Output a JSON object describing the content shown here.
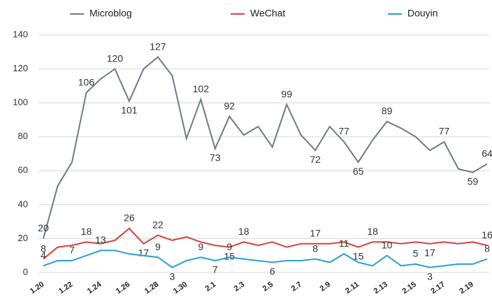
{
  "chart_data": {
    "type": "line",
    "categories": [
      "1.20",
      null,
      "1.22",
      null,
      "1.24",
      null,
      "1.26",
      null,
      "1.28",
      null,
      "1.30",
      null,
      "2.1",
      null,
      "2.3",
      null,
      "2.5",
      null,
      "2.7",
      null,
      "2.9",
      null,
      "2.11",
      null,
      "2.13",
      null,
      "2.15",
      null,
      "2.17",
      null,
      "2.19",
      null
    ],
    "series": [
      {
        "name": "Microblog",
        "color": "#6d7b85",
        "values": [
          20,
          51,
          65,
          106,
          114,
          120,
          101,
          120,
          127,
          116,
          79,
          102,
          73,
          92,
          81,
          86,
          74,
          99,
          81,
          72,
          86,
          77,
          65,
          78,
          89,
          85,
          80,
          72,
          77,
          61,
          59,
          64
        ],
        "value_labels": [
          "20",
          null,
          null,
          "106",
          null,
          "120",
          "101",
          null,
          "127",
          null,
          null,
          "102",
          "73",
          "92",
          null,
          null,
          null,
          "99",
          null,
          "72",
          null,
          "77",
          "65",
          null,
          "89",
          null,
          null,
          null,
          "77",
          null,
          "59",
          "64"
        ]
      },
      {
        "name": "WeChat",
        "color": "#d9423a",
        "values": [
          8,
          15,
          16,
          18,
          17,
          19,
          26,
          17,
          22,
          19,
          21,
          18,
          16,
          15,
          18,
          16,
          18,
          15,
          17,
          17,
          17,
          18,
          15,
          18,
          18,
          17,
          18,
          17,
          18,
          17,
          18,
          16
        ],
        "value_labels": [
          "8",
          null,
          null,
          "18",
          null,
          null,
          "26",
          "17",
          "22",
          null,
          null,
          null,
          null,
          "15",
          "18",
          null,
          null,
          null,
          null,
          "17",
          null,
          null,
          "15",
          "18",
          null,
          null,
          null,
          "17",
          null,
          null,
          null,
          "16"
        ]
      },
      {
        "name": "Douyin",
        "color": "#2a9fd6",
        "values": [
          4,
          7,
          7,
          10,
          13,
          13,
          11,
          10,
          9,
          3,
          7,
          9,
          7,
          9,
          8,
          7,
          6,
          7,
          7,
          8,
          6,
          11,
          6,
          4,
          10,
          4,
          5,
          3,
          4,
          5,
          5,
          8
        ],
        "value_labels": [
          "4",
          null,
          "7",
          null,
          "13",
          null,
          null,
          null,
          "9",
          "3",
          null,
          "9",
          "7",
          "9",
          null,
          null,
          "6",
          null,
          null,
          "8",
          null,
          "11",
          null,
          null,
          "10",
          null,
          "5",
          "3",
          null,
          null,
          null,
          "8"
        ]
      }
    ],
    "ylim": [
      0,
      140
    ],
    "yticks": [
      0,
      20,
      40,
      60,
      80,
      100,
      120,
      140
    ],
    "grid": true,
    "legend": "top"
  }
}
